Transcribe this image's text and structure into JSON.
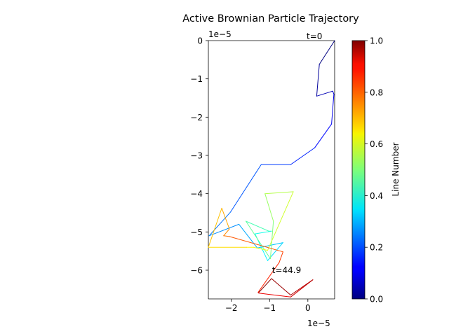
{
  "chart_data": {
    "type": "line",
    "title": "Active Brownian Particle Trajectory",
    "xlabel": "",
    "ylabel": "",
    "x_offset_text": "1e−5",
    "y_offset_text": "1e−5",
    "xlim": [
      -2.6,
      0.7
    ],
    "ylim": [
      -6.75,
      0
    ],
    "x_ticks": [
      -2,
      -1,
      0
    ],
    "x_tick_labels": [
      "−2",
      "−1",
      "0"
    ],
    "y_ticks": [
      0,
      -1,
      -2,
      -3,
      -4,
      -5,
      -6
    ],
    "y_tick_labels": [
      "0",
      "−1",
      "−2",
      "−3",
      "−4",
      "−5",
      "−6"
    ],
    "grid": false,
    "colormap": "jet",
    "annotations": [
      {
        "text": "t=0",
        "x": 0.7,
        "y": 0
      },
      {
        "text": "t=44.9",
        "x": -0.9,
        "y": -6.0
      }
    ],
    "trajectory": {
      "x": [
        0.7,
        0.3,
        0.23,
        0.65,
        0.68,
        0.62,
        0.18,
        -0.45,
        -1.22,
        -2.02,
        -2.58,
        -1.8,
        -1.32,
        -0.65,
        -1.05,
        -1.38,
        -0.95,
        -1.02,
        -1.62,
        -0.98,
        -0.9,
        -1.12,
        -0.38,
        -1.05,
        -1.42,
        -1.6,
        -2.6,
        -2.25,
        -2.05,
        -2.2,
        -2.05,
        -0.65,
        -0.75,
        -1.3,
        -1.28,
        -0.45,
        0.13,
        -0.45,
        -0.95,
        -1.28
      ],
      "y": [
        0.0,
        -0.62,
        -1.45,
        -1.32,
        -1.4,
        -2.18,
        -2.8,
        -3.24,
        -3.24,
        -4.48,
        -5.1,
        -4.8,
        -5.42,
        -5.28,
        -5.75,
        -5.05,
        -4.98,
        -4.98,
        -4.72,
        -5.7,
        -4.72,
        -4.0,
        -3.95,
        -5.48,
        -5.4,
        -5.4,
        -5.4,
        -4.38,
        -4.92,
        -5.1,
        -5.12,
        -5.52,
        -5.8,
        -6.58,
        -6.6,
        -6.7,
        -6.25,
        -6.65,
        -6.22,
        -6.58
      ]
    },
    "colorbar": {
      "label": "Line Number",
      "min": 0,
      "max": 1,
      "ticks": [
        0,
        0.2,
        0.4,
        0.6,
        0.8,
        1.0
      ],
      "tick_labels": [
        "0.0",
        "0.2",
        "0.4",
        "0.6",
        "0.8",
        "1.0"
      ]
    }
  }
}
